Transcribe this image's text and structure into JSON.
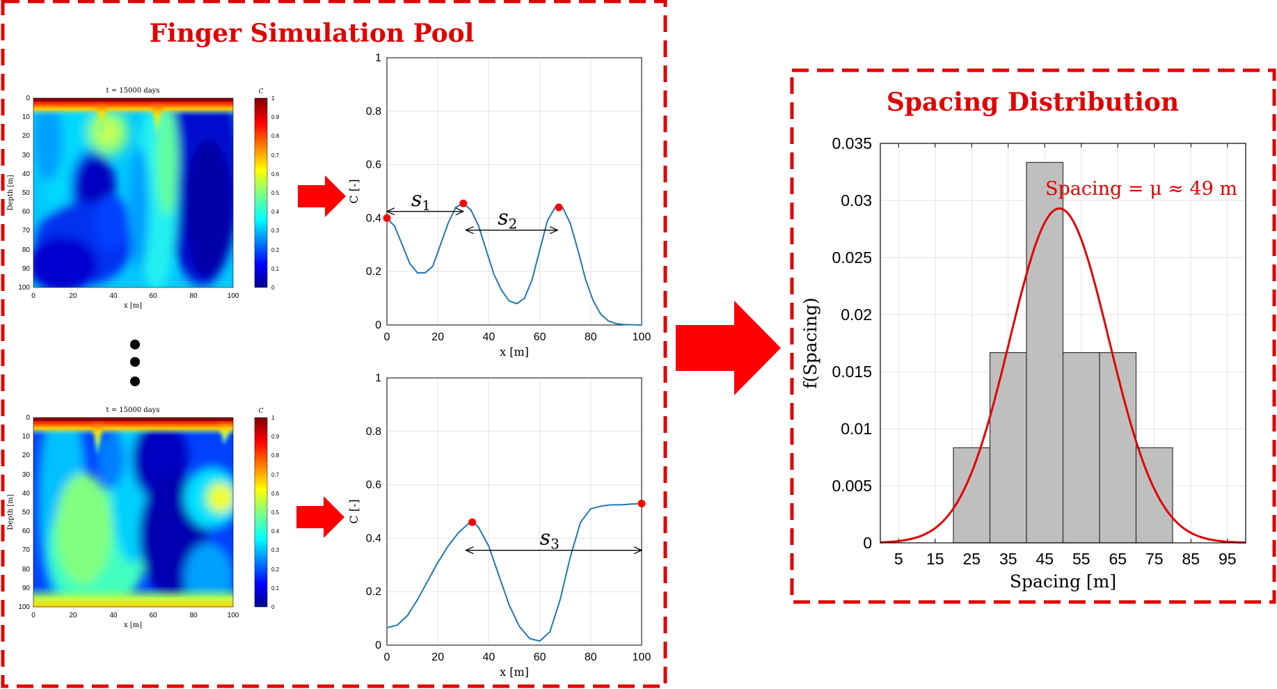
{
  "panels": {
    "pool_title": "Finger Simulation Pool",
    "dist_title": "Spacing Distribution"
  },
  "colors": {
    "accent_red": "#e00000",
    "curve_blue": "#1f77b4",
    "bar_fill": "#bfbfbf"
  },
  "heatmaps": [
    {
      "title": "t = 15000 days",
      "xlabel": "x [m]",
      "ylabel": "Depth [m]",
      "xticks": [
        "0",
        "20",
        "40",
        "60",
        "80",
        "100"
      ],
      "yticks": [
        "0",
        "10",
        "20",
        "30",
        "40",
        "50",
        "60",
        "70",
        "80",
        "90",
        "100"
      ],
      "colorbar_label": "C",
      "colorbar_ticks": [
        "0",
        "0.1",
        "0.2",
        "0.3",
        "0.4",
        "0.5",
        "0.6",
        "0.7",
        "0.8",
        "0.9",
        "1"
      ]
    },
    {
      "title": "t = 15000 days",
      "xlabel": "x [m]",
      "ylabel": "Depth [m]",
      "xticks": [
        "0",
        "20",
        "40",
        "60",
        "80",
        "100"
      ],
      "yticks": [
        "0",
        "10",
        "20",
        "30",
        "40",
        "50",
        "60",
        "70",
        "80",
        "90",
        "100"
      ],
      "colorbar_label": "C",
      "colorbar_ticks": [
        "0",
        "0.1",
        "0.2",
        "0.3",
        "0.4",
        "0.5",
        "0.6",
        "0.7",
        "0.8",
        "0.9",
        "1"
      ]
    }
  ],
  "profile_top": {
    "type": "line",
    "xlabel": "x [m]",
    "ylabel": "C [-]",
    "xlim": [
      0,
      100
    ],
    "ylim": [
      0,
      1
    ],
    "xticks": [
      "0",
      "20",
      "40",
      "60",
      "80",
      "100"
    ],
    "yticks": [
      "0",
      "0.2",
      "0.4",
      "0.6",
      "0.8",
      "1"
    ],
    "x": [
      0,
      3,
      6,
      9,
      12,
      15,
      18,
      21,
      24,
      27,
      30,
      33,
      36,
      39,
      42,
      45,
      48,
      51,
      54,
      57,
      60,
      63,
      66,
      69,
      72,
      75,
      78,
      81,
      84,
      87,
      90,
      93,
      96,
      100
    ],
    "y": [
      0.4,
      0.37,
      0.3,
      0.23,
      0.195,
      0.195,
      0.22,
      0.3,
      0.38,
      0.44,
      0.455,
      0.43,
      0.37,
      0.28,
      0.19,
      0.13,
      0.09,
      0.08,
      0.1,
      0.17,
      0.28,
      0.39,
      0.44,
      0.44,
      0.38,
      0.28,
      0.17,
      0.09,
      0.04,
      0.015,
      0.005,
      0.002,
      0.001,
      0.0
    ],
    "peaks": [
      {
        "x": 0,
        "y": 0.4
      },
      {
        "x": 30,
        "y": 0.455
      },
      {
        "x": 67.5,
        "y": 0.44
      }
    ],
    "spacings": [
      {
        "label": "s",
        "sub": "1",
        "x1": 0,
        "x2": 30,
        "y": 0.425
      },
      {
        "label": "s",
        "sub": "2",
        "x1": 31,
        "x2": 67,
        "y": 0.355
      }
    ]
  },
  "profile_bottom": {
    "type": "line",
    "xlabel": "x [m]",
    "ylabel": "C [-]",
    "xlim": [
      0,
      100
    ],
    "ylim": [
      0,
      1
    ],
    "xticks": [
      "0",
      "20",
      "40",
      "60",
      "80",
      "100"
    ],
    "yticks": [
      "0",
      "0.2",
      "0.4",
      "0.6",
      "0.8",
      "1"
    ],
    "x": [
      0,
      4,
      8,
      12,
      16,
      20,
      24,
      28,
      32,
      34,
      36,
      40,
      44,
      48,
      52,
      56,
      60,
      64,
      68,
      72,
      76,
      80,
      84,
      88,
      92,
      96,
      100
    ],
    "y": [
      0.065,
      0.075,
      0.11,
      0.17,
      0.24,
      0.31,
      0.37,
      0.42,
      0.455,
      0.46,
      0.44,
      0.37,
      0.26,
      0.15,
      0.07,
      0.025,
      0.015,
      0.05,
      0.17,
      0.33,
      0.46,
      0.51,
      0.52,
      0.525,
      0.525,
      0.528,
      0.53
    ],
    "peaks": [
      {
        "x": 33.5,
        "y": 0.46
      },
      {
        "x": 100,
        "y": 0.53
      }
    ],
    "spacings": [
      {
        "label": "s",
        "sub": "3",
        "x1": 31,
        "x2": 100,
        "y": 0.355
      }
    ]
  },
  "chart_data": {
    "type": "bar",
    "xlabel": "Spacing [m]",
    "ylabel": "f(Spacing)",
    "xlim": [
      0,
      100
    ],
    "ylim": [
      0,
      0.035
    ],
    "xticks": [
      "5",
      "15",
      "25",
      "35",
      "45",
      "55",
      "65",
      "75",
      "85",
      "95"
    ],
    "yticks": [
      "0",
      "0.005",
      "0.01",
      "0.015",
      "0.02",
      "0.025",
      "0.03",
      "0.035"
    ],
    "bins": [
      {
        "x0": 20,
        "x1": 30,
        "value": 0.00833
      },
      {
        "x0": 30,
        "x1": 40,
        "value": 0.01667
      },
      {
        "x0": 40,
        "x1": 50,
        "value": 0.03333
      },
      {
        "x0": 50,
        "x1": 60,
        "value": 0.01667
      },
      {
        "x0": 60,
        "x1": 70,
        "value": 0.01667
      },
      {
        "x0": 70,
        "x1": 80,
        "value": 0.00833
      }
    ],
    "fit": {
      "type": "normal",
      "mean": 49,
      "sd": 13.6,
      "peak": 0.0293
    },
    "annotation": "Spacing = μ ≈ 49 m",
    "grid": true
  }
}
